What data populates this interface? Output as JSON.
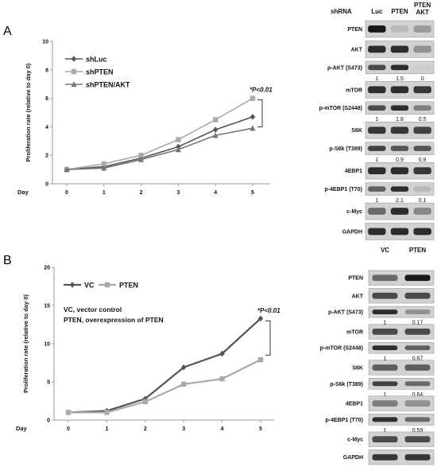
{
  "panels": [
    {
      "letter": "A",
      "chart_data": {
        "type": "line",
        "x": [
          0,
          1,
          2,
          3,
          4,
          5
        ],
        "xlabel": "Day",
        "ylabel": "Proliferation rate (relative to day 0)",
        "ylim": [
          0,
          10
        ],
        "yticks": [
          0,
          2,
          4,
          6,
          8,
          10
        ],
        "series": [
          {
            "name": "shLuc",
            "values": [
              1.0,
              1.2,
              1.8,
              2.6,
              3.8,
              4.7
            ],
            "color": "#555555",
            "marker": "diamond"
          },
          {
            "name": "shPTEN",
            "values": [
              1.0,
              1.4,
              2.0,
              3.1,
              4.5,
              6.0
            ],
            "color": "#a9a9a9",
            "marker": "square"
          },
          {
            "name": "shPTEN/AKT",
            "values": [
              1.0,
              1.1,
              1.7,
              2.4,
              3.4,
              3.9
            ],
            "color": "#777777",
            "marker": "triangle"
          }
        ],
        "annotation": "*P<0.01",
        "bracket": [
          4.0,
          5.9
        ]
      },
      "blot": {
        "header_label": "shRNA",
        "lanes": [
          "Luc",
          "PTEN",
          "PTEN\nAKT"
        ],
        "rows": [
          {
            "label": "PTEN",
            "intensity": [
              0.95,
              0.15,
              0.3
            ],
            "quant": null
          },
          {
            "label": "AKT",
            "intensity": [
              0.85,
              0.85,
              0.35
            ],
            "quant": null
          },
          {
            "label": "p-AKT (S473)",
            "intensity": [
              0.7,
              0.85,
              0.05
            ],
            "quant": [
              "1",
              "1.5",
              "0"
            ]
          },
          {
            "label": "mTOR",
            "intensity": [
              0.85,
              0.85,
              0.8
            ],
            "quant": null
          },
          {
            "label": "p-mTOR (S2448)",
            "intensity": [
              0.7,
              0.85,
              0.45
            ],
            "quant": [
              "1",
              "1.8",
              "0.5"
            ]
          },
          {
            "label": "S6K",
            "intensity": [
              0.8,
              0.8,
              0.75
            ],
            "quant": null
          },
          {
            "label": "p-S6k (T389)",
            "intensity": [
              0.75,
              0.65,
              0.65
            ],
            "quant": [
              "1",
              "0.9",
              "0.9"
            ]
          },
          {
            "label": "4EBP1",
            "intensity": [
              0.85,
              0.85,
              0.8
            ],
            "quant": null
          },
          {
            "label": "p-4EBP1 (T70)",
            "intensity": [
              0.6,
              0.85,
              0.15
            ],
            "quant": [
              "1",
              "2.1",
              "0.1"
            ]
          },
          {
            "label": "c-Myc",
            "intensity": [
              0.55,
              0.85,
              0.4
            ],
            "quant": null
          },
          {
            "label": "GAPDH",
            "intensity": [
              0.85,
              0.85,
              0.85
            ],
            "quant": null
          }
        ]
      }
    },
    {
      "letter": "B",
      "chart_data": {
        "type": "line",
        "x": [
          0,
          1,
          2,
          3,
          4,
          5
        ],
        "xlabel": "Day",
        "ylabel": "Proliferation rate (relative to day 0)",
        "ylim": [
          0,
          20
        ],
        "yticks": [
          0,
          5,
          10,
          15,
          20
        ],
        "series": [
          {
            "name": "VC",
            "values": [
              1.0,
              1.2,
              2.8,
              6.9,
              8.7,
              13.3
            ],
            "color": "#555555",
            "marker": "diamond"
          },
          {
            "name": "PTEN",
            "values": [
              1.0,
              1.0,
              2.4,
              4.7,
              5.4,
              7.9
            ],
            "color": "#a9a9a9",
            "marker": "square"
          }
        ],
        "annotation": "*P<0.01",
        "bracket": [
          8.5,
          13.0
        ],
        "notes": [
          "VC, vector control",
          "PTEN, overexpression of PTEN"
        ]
      },
      "blot": {
        "header_label": "",
        "lanes": [
          "VC",
          "PTEN"
        ],
        "rows": [
          {
            "label": "PTEN",
            "intensity": [
              0.55,
              0.95
            ],
            "quant": null
          },
          {
            "label": "AKT",
            "intensity": [
              0.7,
              0.7
            ],
            "quant": null
          },
          {
            "label": "p-AKT (S473)",
            "intensity": [
              0.85,
              0.35
            ],
            "quant": [
              "1",
              "0.17"
            ]
          },
          {
            "label": "mTOR",
            "intensity": [
              0.7,
              0.7
            ],
            "quant": null
          },
          {
            "label": "p-mTOR (S2448)",
            "intensity": [
              0.85,
              0.6
            ],
            "quant": [
              "1",
              "0.67"
            ]
          },
          {
            "label": "S6K",
            "intensity": [
              0.6,
              0.6
            ],
            "quant": null
          },
          {
            "label": "p-S6k (T389)",
            "intensity": [
              0.75,
              0.55
            ],
            "quant": [
              "1",
              "0.64"
            ]
          },
          {
            "label": "4EBP1",
            "intensity": [
              0.45,
              0.35
            ],
            "quant": null
          },
          {
            "label": "p-4EBP1 (T70)",
            "intensity": [
              0.85,
              0.55
            ],
            "quant": [
              "1",
              "0.59"
            ]
          },
          {
            "label": "c-Myc",
            "intensity": [
              0.7,
              0.7
            ],
            "quant": null
          },
          {
            "label": "GAPDH",
            "intensity": [
              0.8,
              0.8
            ],
            "quant": null
          }
        ]
      }
    }
  ]
}
